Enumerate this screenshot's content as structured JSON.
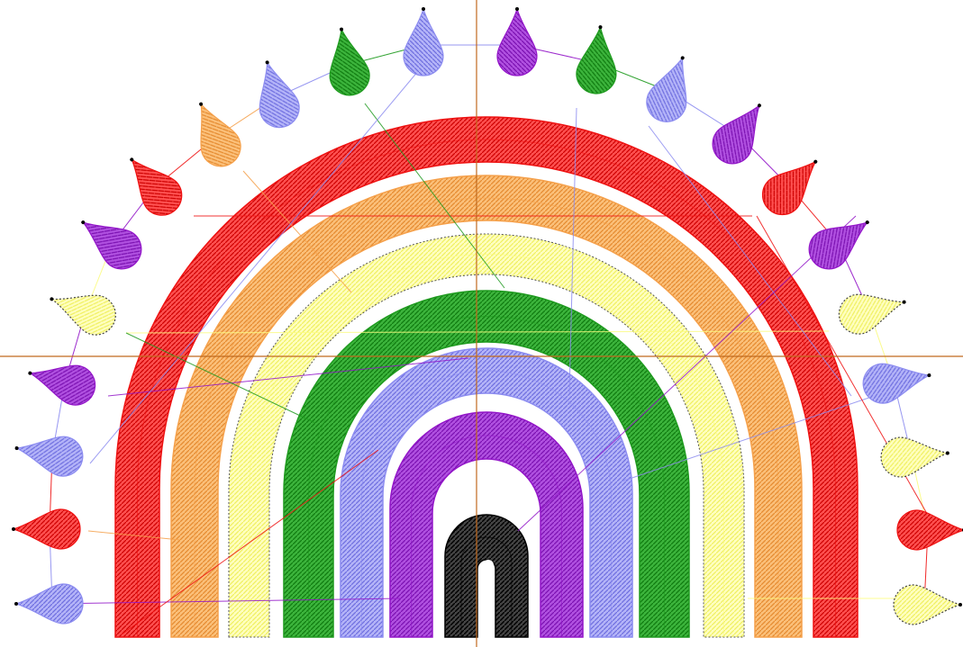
{
  "design": {
    "subject": "rainbow-embroidery",
    "colors": {
      "red": "#ee1111",
      "orange": "#f5a04a",
      "yellow": "#fbfb80",
      "green": "#1e9a1e",
      "blue": "#8c8cf0",
      "purple": "#9215c8",
      "black": "#000000",
      "crosshair": "#c0691e"
    },
    "arcs": [
      {
        "name": "red",
        "color": "red"
      },
      {
        "name": "orange",
        "color": "orange"
      },
      {
        "name": "yellow",
        "color": "yellow"
      },
      {
        "name": "green",
        "color": "green"
      },
      {
        "name": "blue",
        "color": "blue"
      },
      {
        "name": "purple",
        "color": "purple"
      },
      {
        "name": "black",
        "color": "black"
      }
    ],
    "drops_color_sequence": [
      "blue",
      "red",
      "blue",
      "purple",
      "yellow",
      "purple",
      "red",
      "orange",
      "blue",
      "green",
      "blue",
      "purple",
      "green",
      "blue",
      "purple",
      "red",
      "purple",
      "yellow",
      "blue",
      "yellow",
      "red",
      "yellow"
    ],
    "has_crosshair": true,
    "has_jump_stitch_lines": true
  }
}
